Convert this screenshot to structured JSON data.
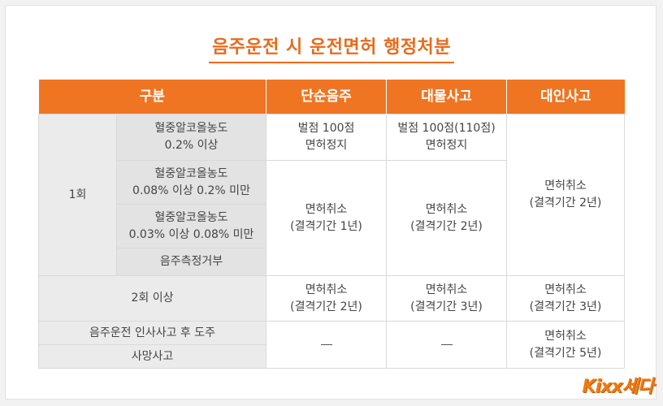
{
  "title": "음주운전 시 운전면허 행정처분",
  "table": {
    "headers": [
      "구분",
      "단순음주",
      "대물사고",
      "대인사고"
    ],
    "first_offense": {
      "label": "1회",
      "rows": [
        {
          "cond": [
            "혈중알코올농도",
            "0.2% 이상"
          ]
        },
        {
          "cond": [
            "혈중알코올농도",
            "0.08% 이상 0.2% 미만"
          ]
        },
        {
          "cond": [
            "혈중알코올농도",
            "0.03% 이상 0.08% 미만"
          ]
        },
        {
          "cond": [
            "음주측정거부"
          ]
        }
      ],
      "simple_top": [
        "벌점 100점",
        "면허정지"
      ],
      "property_top": [
        "벌점 100점(110점)",
        "면허정지"
      ],
      "simple_rest": [
        "면허취소",
        "(결격기간 1년)"
      ],
      "property_rest": [
        "면허취소",
        "(결격기간 2년)"
      ],
      "injury_all": [
        "면허취소",
        "(결격기간 2년)"
      ]
    },
    "second_offense": {
      "label": "2회 이상",
      "simple": [
        "면허취소",
        "(결격기간 2년)"
      ],
      "property": [
        "면허취소",
        "(결격기간 3년)"
      ],
      "injury": [
        "면허취소",
        "(결격기간 3년)"
      ]
    },
    "hit_and_run": {
      "label_1": "음주운전 인사사고 후 도주",
      "label_2": "사망사고",
      "injury": [
        "면허취소",
        "(결격기간 5년)"
      ]
    }
  },
  "brand": "Kixx세다"
}
